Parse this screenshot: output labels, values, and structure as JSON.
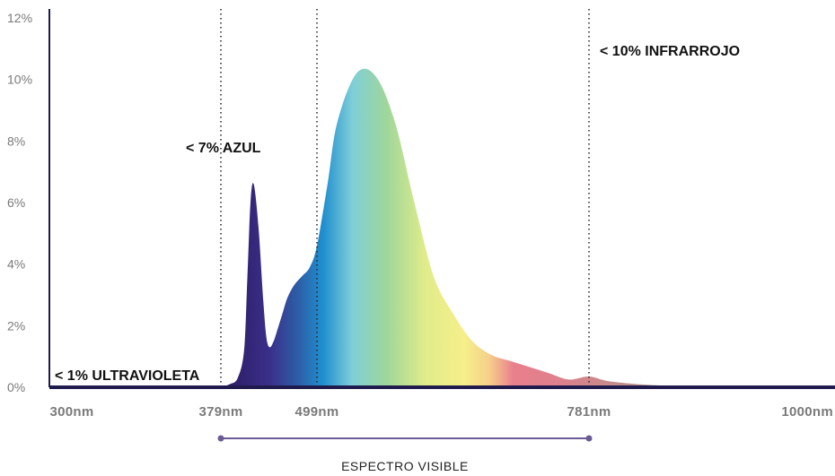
{
  "chart_data": {
    "type": "area",
    "title": "",
    "xlabel": "",
    "ylabel": "",
    "y_ticks": [
      "0%",
      "2%",
      "4%",
      "6%",
      "8%",
      "10%",
      "12%"
    ],
    "x_ticks": [
      {
        "label": "300nm",
        "value": 300
      },
      {
        "label": "379nm",
        "value": 379
      },
      {
        "label": "499nm",
        "value": 499
      },
      {
        "label": "781nm",
        "value": 781
      },
      {
        "label": "1000nm",
        "value": 1000
      }
    ],
    "ylim": [
      0,
      12
    ],
    "series": [
      {
        "x": [
          379,
          390,
          400,
          408,
          412,
          416,
          420,
          426,
          432,
          436,
          440,
          445,
          450,
          456,
          462,
          470,
          480,
          490,
          499,
          510,
          520,
          540,
          560,
          580,
          600,
          620,
          640,
          660,
          680,
          700,
          720,
          740,
          760,
          781,
          800,
          830,
          860,
          900
        ],
        "values": [
          0.0,
          0.1,
          0.3,
          1.2,
          3.5,
          6.0,
          6.6,
          5.2,
          2.8,
          1.6,
          1.3,
          1.5,
          1.9,
          2.4,
          2.9,
          3.3,
          3.6,
          3.9,
          4.6,
          6.6,
          8.6,
          10.2,
          10.1,
          8.6,
          6.0,
          3.6,
          2.4,
          1.5,
          1.05,
          0.85,
          0.65,
          0.45,
          0.25,
          0.35,
          0.2,
          0.1,
          0.05,
          0.0
        ]
      }
    ],
    "annotations": [
      {
        "text": "< 1% ULTRAVIOLETA"
      },
      {
        "text": "< 7% AZUL"
      },
      {
        "text": "< 10% INFRARROJO"
      }
    ],
    "vlines": [
      379,
      499,
      781
    ],
    "range_label": "ESPECTRO VISIBLE",
    "colors": {
      "axis": "#1f1b4d",
      "range_line": "#6b5b95",
      "gradient": [
        "#2a1a5e",
        "#3a2f8a",
        "#2d5fa8",
        "#1f8fcf",
        "#7fcfd8",
        "#9fd69a",
        "#e0ec8a",
        "#f6ef8a",
        "#f5d08a",
        "#f0a08c",
        "#e8808c",
        "#e07f8d",
        "#c78b8b",
        "#a8908c",
        "#9a8c8c"
      ]
    }
  }
}
